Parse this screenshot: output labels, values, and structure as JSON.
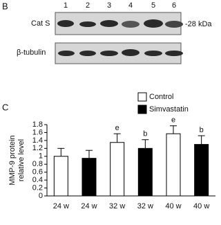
{
  "blot": {
    "panel": "B",
    "lanes": [
      "1",
      "2",
      "3",
      "4",
      "5",
      "6"
    ],
    "rows": [
      "Cat S",
      "β-tubulin"
    ],
    "marker": "-28 kDa"
  },
  "chart_data": {
    "type": "bar",
    "panel": "C",
    "ylabel": [
      "MMP-9 protein",
      "relative level"
    ],
    "categories": [
      "24 w",
      "24 w",
      "32 w",
      "32 w",
      "40 w",
      "40 w"
    ],
    "series": [
      {
        "name": "Control",
        "color": "#ffffff",
        "values": [
          1.0,
          null,
          1.35,
          null,
          1.57,
          null
        ],
        "errors": [
          0.2,
          null,
          0.22,
          null,
          0.2,
          null
        ],
        "markers": [
          null,
          null,
          "e",
          null,
          "e",
          null
        ]
      },
      {
        "name": "Simvastatin",
        "color": "#000000",
        "values": [
          null,
          0.95,
          null,
          1.2,
          null,
          1.3
        ],
        "errors": [
          null,
          0.2,
          null,
          0.22,
          null,
          0.22
        ],
        "markers": [
          null,
          null,
          null,
          "b",
          null,
          "b"
        ]
      }
    ],
    "ylim": [
      0,
      1.8
    ],
    "yticks": [
      0,
      0.2,
      0.4,
      0.6,
      0.8,
      1,
      1.2,
      1.4,
      1.6,
      1.8
    ]
  }
}
